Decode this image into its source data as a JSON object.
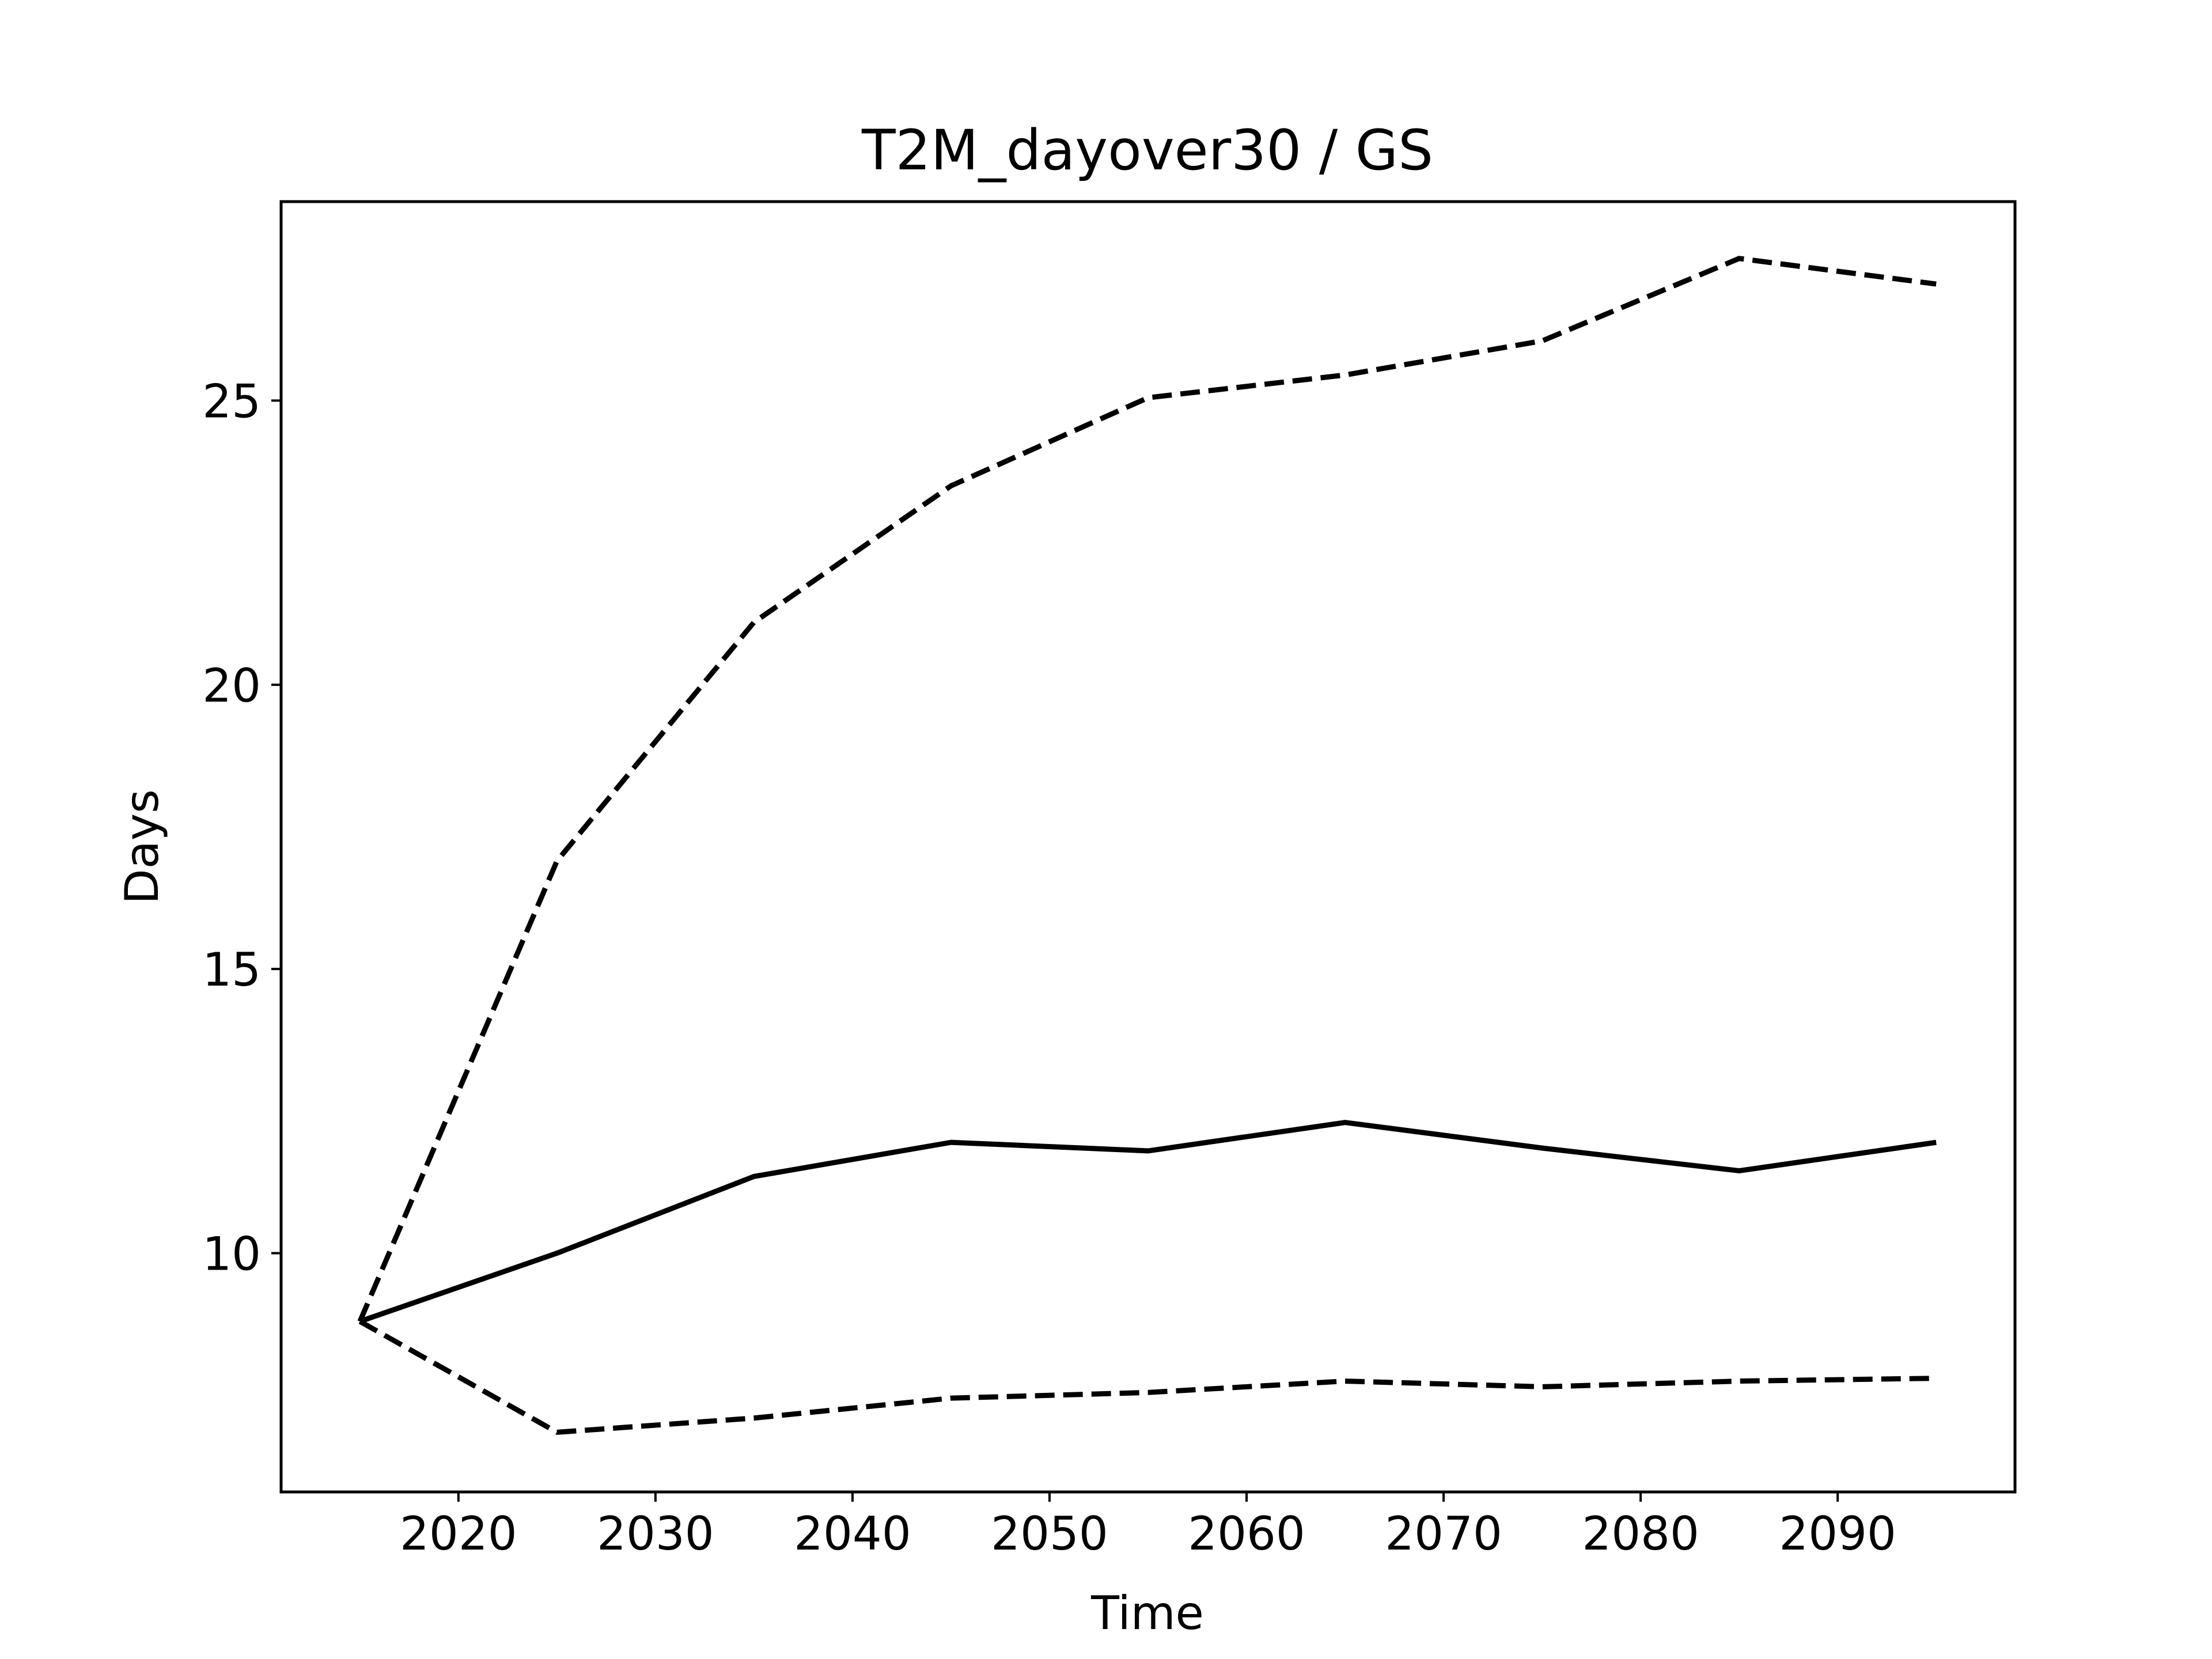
{
  "chart_data": {
    "type": "line",
    "title": "T2M_dayover30 / GS",
    "xlabel": "Time",
    "ylabel": "Days",
    "xlim": [
      2011,
      2099
    ],
    "ylim": [
      5.8,
      28.5
    ],
    "xticks": [
      2020,
      2030,
      2040,
      2050,
      2060,
      2070,
      2080,
      2090
    ],
    "yticks": [
      10,
      15,
      20,
      25
    ],
    "grid": false,
    "legend": "none",
    "x": [
      2015,
      2025,
      2035,
      2045,
      2055,
      2065,
      2075,
      2085,
      2095
    ],
    "series": [
      {
        "style": "solid",
        "color": "#000000",
        "values": [
          8.8,
          10.0,
          11.35,
          11.95,
          11.8,
          12.3,
          11.85,
          11.45,
          11.95
        ]
      },
      {
        "style": "dashed",
        "color": "#000000",
        "values": [
          8.8,
          16.9,
          21.1,
          23.5,
          25.05,
          25.45,
          26.05,
          27.5,
          27.05
        ]
      },
      {
        "style": "dashed",
        "color": "#000000",
        "values": [
          8.8,
          6.85,
          7.1,
          7.45,
          7.55,
          7.75,
          7.65,
          7.75,
          7.8
        ]
      }
    ]
  }
}
